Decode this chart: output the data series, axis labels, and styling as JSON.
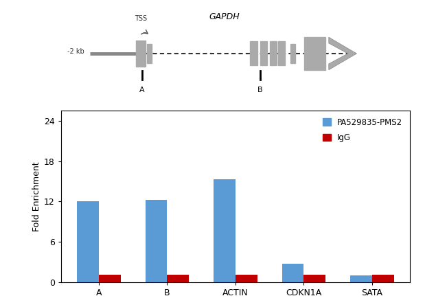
{
  "categories": [
    "A",
    "B",
    "ACTIN",
    "CDKN1A",
    "SATA"
  ],
  "pms2_values": [
    12.0,
    12.2,
    15.3,
    2.8,
    1.0
  ],
  "igg_values": [
    1.1,
    1.1,
    1.1,
    1.1,
    1.1
  ],
  "bar_color_pms2": "#5b9bd5",
  "bar_color_igg": "#c00000",
  "ylabel": "Fold Enrichment",
  "yticks": [
    0,
    6,
    12,
    18,
    24
  ],
  "ylim": [
    0,
    25.5
  ],
  "legend_pms2": "PA529835-PMS2",
  "legend_igg": "IgG",
  "bar_width": 0.32,
  "diagram_title": "GAPDH",
  "diagram_minus2kb": "-2 kb",
  "diagram_tss": "TSS",
  "diagram_label_a": "A",
  "diagram_label_b": "B",
  "fig_width": 6.35,
  "fig_height": 4.47,
  "dpi": 100
}
